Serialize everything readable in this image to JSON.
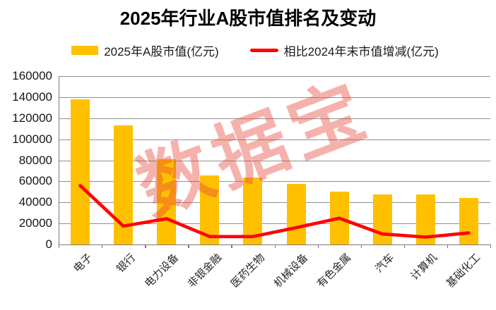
{
  "title": "2025年行业A股市值排名及变动",
  "watermark": "数据宝",
  "legend": [
    {
      "label": "2025年A股市值(亿元)",
      "type": "bar",
      "color": "#FFC000"
    },
    {
      "label": "相比2024年末市值增减(亿元)",
      "type": "line",
      "color": "#FF0000"
    }
  ],
  "chart_data": {
    "type": "bar",
    "title": "2025年行业A股市值排名及变动",
    "xlabel": "",
    "ylabel": "",
    "categories": [
      "电子",
      "银行",
      "电力设备",
      "非银金融",
      "医药生物",
      "机械设备",
      "有色金属",
      "汽车",
      "计算机",
      "基础化工"
    ],
    "series": [
      {
        "name": "2025年A股市值(亿元)",
        "type": "bar",
        "color": "#FFC000",
        "values": [
          138000,
          113000,
          81000,
          65500,
          63500,
          57500,
          50000,
          47500,
          47500,
          44500
        ]
      },
      {
        "name": "相比2024年末市值增减(亿元)",
        "type": "line",
        "color": "#FF0000",
        "values": [
          56000,
          17500,
          24500,
          7500,
          7500,
          16000,
          25000,
          10000,
          7000,
          11000
        ]
      }
    ],
    "ylim": [
      0,
      160000
    ],
    "yticks": [
      0,
      20000,
      40000,
      60000,
      80000,
      100000,
      120000,
      140000,
      160000
    ],
    "grid": true,
    "legend_position": "top",
    "gridline_color": "#8f8f8f"
  }
}
